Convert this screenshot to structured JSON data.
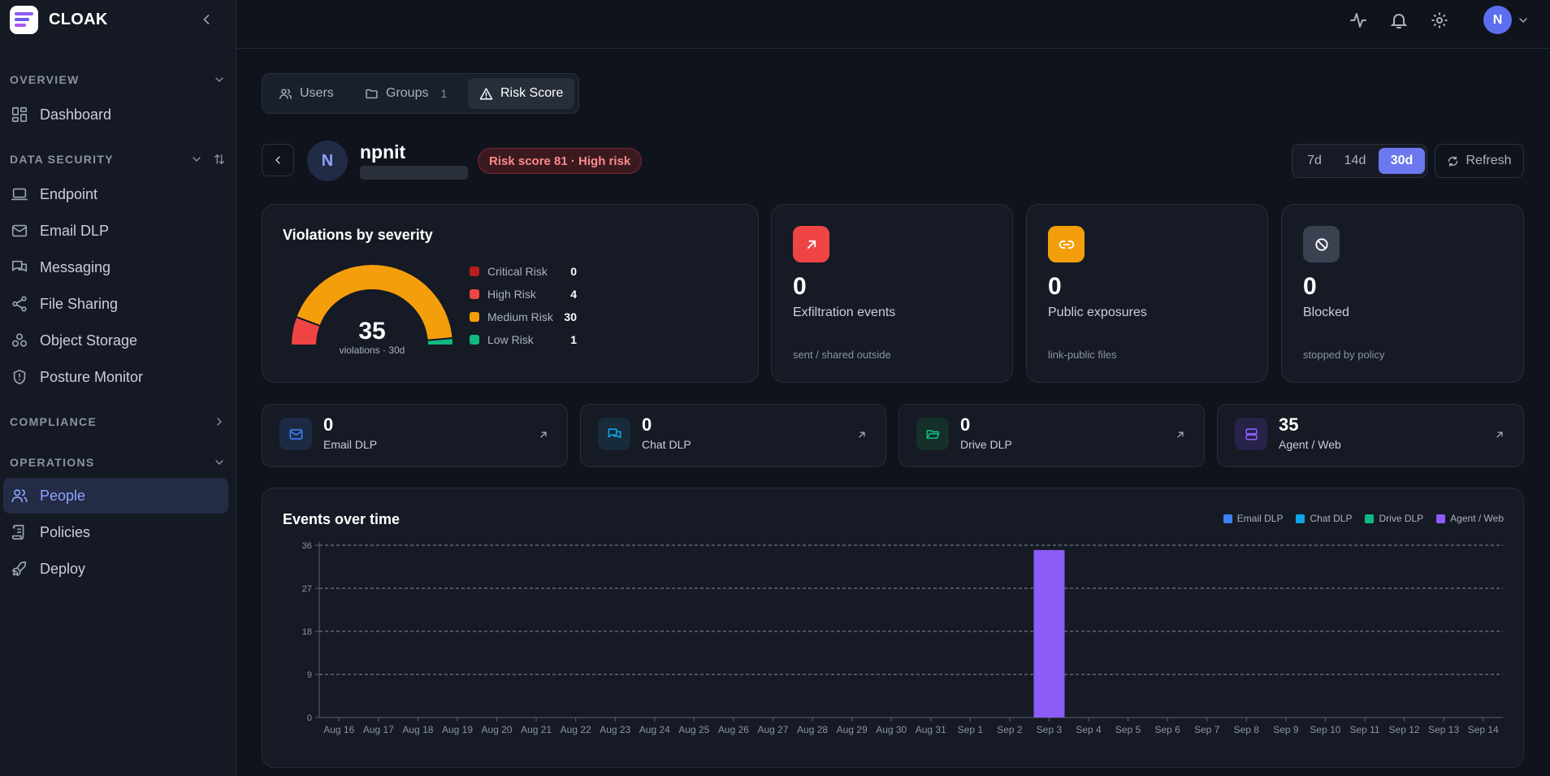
{
  "app": {
    "name": "CLOAK"
  },
  "sidebar": {
    "sections": [
      {
        "label": "OVERVIEW"
      },
      {
        "label": "DATA SECURITY"
      },
      {
        "label": "COMPLIANCE"
      },
      {
        "label": "OPERATIONS"
      }
    ],
    "items": [
      {
        "label": "Dashboard",
        "icon": "dashboard-icon"
      },
      {
        "label": "Endpoint",
        "icon": "laptop-icon"
      },
      {
        "label": "Email DLP",
        "icon": "mail-icon"
      },
      {
        "label": "Messaging",
        "icon": "chat-icon"
      },
      {
        "label": "File Sharing",
        "icon": "share-icon"
      },
      {
        "label": "Object Storage",
        "icon": "storage-icon"
      },
      {
        "label": "Posture Monitor",
        "icon": "shield-icon"
      },
      {
        "label": "People",
        "icon": "people-icon",
        "active": true
      },
      {
        "label": "Policies",
        "icon": "policies-icon"
      },
      {
        "label": "Deploy",
        "icon": "rocket-icon"
      }
    ]
  },
  "topbar": {
    "avatar_initial": "N"
  },
  "tabs": [
    {
      "label": "Users",
      "icon": "users-icon"
    },
    {
      "label": "Groups",
      "count": "1",
      "icon": "folder-icon"
    },
    {
      "label": "Risk Score",
      "icon": "warning-icon",
      "active": true
    }
  ],
  "profile": {
    "initial": "N",
    "name": "npnit",
    "risk_badge": "Risk score 81 · High risk"
  },
  "range": {
    "options": [
      "7d",
      "14d",
      "30d"
    ],
    "selected": "30d",
    "refresh_label": "Refresh"
  },
  "severity": {
    "title": "Violations by severity",
    "total": "35",
    "caption": "violations · 30d",
    "levels": [
      {
        "label": "Critical Risk",
        "value": 0,
        "color": "#b91c1c"
      },
      {
        "label": "High Risk",
        "value": 4,
        "color": "#ef4444"
      },
      {
        "label": "Medium Risk",
        "value": 30,
        "color": "#f59e0b"
      },
      {
        "label": "Low Risk",
        "value": 1,
        "color": "#10b981"
      }
    ]
  },
  "stats": [
    {
      "value": "0",
      "label": "Exfiltration events",
      "sub": "sent / shared outside",
      "icon": "arrow-up-right-icon",
      "color": "#ef4444"
    },
    {
      "value": "0",
      "label": "Public exposures",
      "sub": "link-public files",
      "icon": "link-icon",
      "color": "#f59e0b"
    },
    {
      "value": "0",
      "label": "Blocked",
      "sub": "stopped by policy",
      "icon": "blocked-icon",
      "color": "#3a4252"
    }
  ],
  "channels": [
    {
      "value": "0",
      "label": "Email DLP",
      "icon": "mail-icon",
      "color": "#3b82f6"
    },
    {
      "value": "0",
      "label": "Chat DLP",
      "icon": "chat-icon",
      "color": "#0ea5e9"
    },
    {
      "value": "0",
      "label": "Drive DLP",
      "icon": "folder-open-icon",
      "color": "#10b981"
    },
    {
      "value": "35",
      "label": "Agent / Web",
      "icon": "server-icon",
      "color": "#8b5cf6"
    }
  ],
  "events": {
    "title": "Events over time"
  },
  "chart_data": {
    "type": "bar",
    "stacked": true,
    "categories": [
      "Aug 16",
      "Aug 17",
      "Aug 18",
      "Aug 19",
      "Aug 20",
      "Aug 21",
      "Aug 22",
      "Aug 23",
      "Aug 24",
      "Aug 25",
      "Aug 26",
      "Aug 27",
      "Aug 28",
      "Aug 29",
      "Aug 30",
      "Aug 31",
      "Sep 1",
      "Sep 2",
      "Sep 3",
      "Sep 4",
      "Sep 5",
      "Sep 6",
      "Sep 7",
      "Sep 8",
      "Sep 9",
      "Sep 10",
      "Sep 11",
      "Sep 12",
      "Sep 13",
      "Sep 14"
    ],
    "series": [
      {
        "name": "Email DLP",
        "color": "#3b82f6",
        "values": [
          0,
          0,
          0,
          0,
          0,
          0,
          0,
          0,
          0,
          0,
          0,
          0,
          0,
          0,
          0,
          0,
          0,
          0,
          0,
          0,
          0,
          0,
          0,
          0,
          0,
          0,
          0,
          0,
          0,
          0
        ]
      },
      {
        "name": "Chat DLP",
        "color": "#0ea5e9",
        "values": [
          0,
          0,
          0,
          0,
          0,
          0,
          0,
          0,
          0,
          0,
          0,
          0,
          0,
          0,
          0,
          0,
          0,
          0,
          0,
          0,
          0,
          0,
          0,
          0,
          0,
          0,
          0,
          0,
          0,
          0
        ]
      },
      {
        "name": "Drive DLP",
        "color": "#10b981",
        "values": [
          0,
          0,
          0,
          0,
          0,
          0,
          0,
          0,
          0,
          0,
          0,
          0,
          0,
          0,
          0,
          0,
          0,
          0,
          0,
          0,
          0,
          0,
          0,
          0,
          0,
          0,
          0,
          0,
          0,
          0
        ]
      },
      {
        "name": "Agent / Web",
        "color": "#8b5cf6",
        "values": [
          0,
          0,
          0,
          0,
          0,
          0,
          0,
          0,
          0,
          0,
          0,
          0,
          0,
          0,
          0,
          0,
          0,
          0,
          35,
          0,
          0,
          0,
          0,
          0,
          0,
          0,
          0,
          0,
          0,
          0
        ]
      }
    ],
    "yticks": [
      0,
      9,
      18,
      27,
      36
    ],
    "ylim": [
      0,
      36
    ],
    "grid": true,
    "legend": "top-right"
  }
}
